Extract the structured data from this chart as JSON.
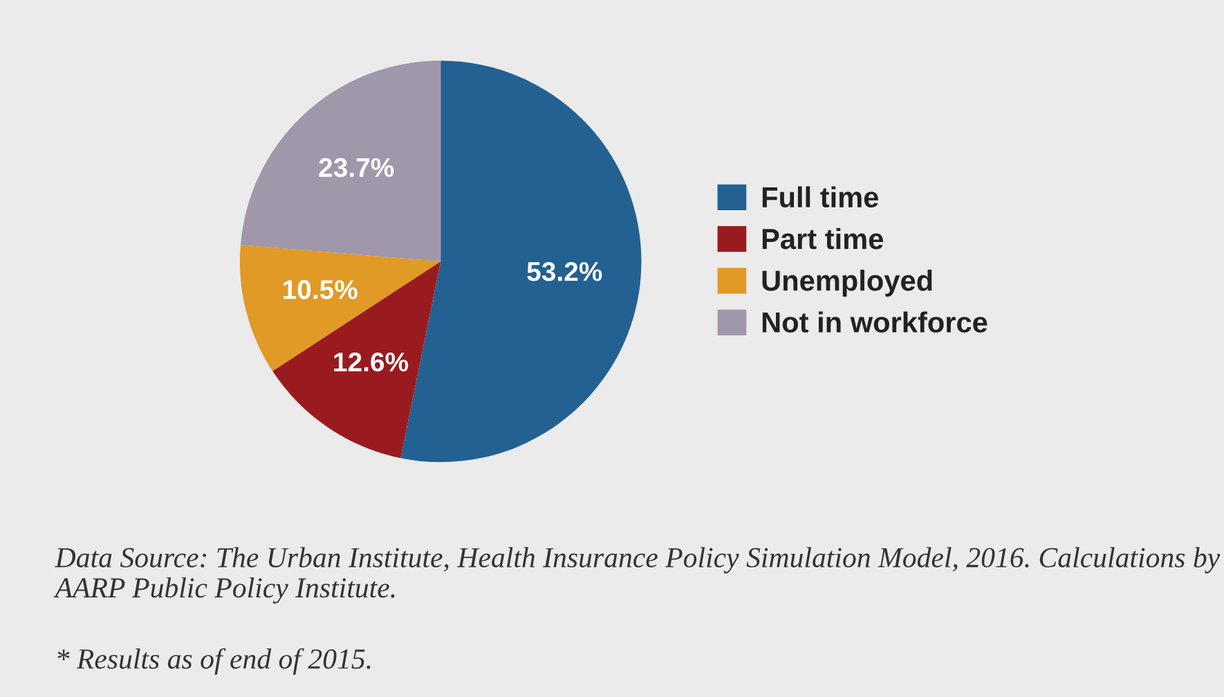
{
  "chart_data": {
    "type": "pie",
    "categories": [
      "Full time",
      "Part time",
      "Unemployed",
      "Not in workforce"
    ],
    "values": [
      53.2,
      12.6,
      10.5,
      23.7
    ],
    "colors": [
      "#236192",
      "#9a1b1f",
      "#e09a25",
      "#a197ab"
    ],
    "value_labels": [
      "53.2%",
      "12.6%",
      "10.5%",
      "23.7%"
    ],
    "legend": "right",
    "annotations": [
      "Data Source: The Urban Institute, Health Insurance Policy Simulation Model, 2016. Calculations by AARP Public Policy Institute.",
      "* Results as of end of 2015."
    ]
  }
}
